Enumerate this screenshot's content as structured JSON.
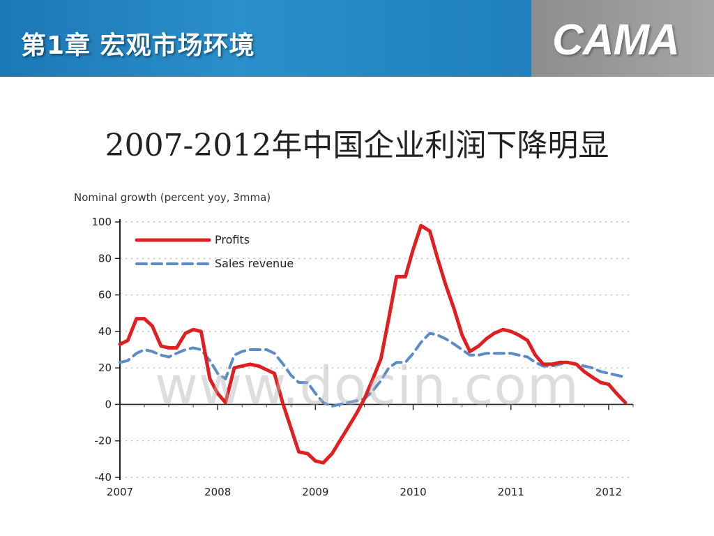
{
  "header": {
    "chapter_title": "第1章   宏观市场环境",
    "logo_text": "CAMA",
    "colors": {
      "band": "#1f7fbf",
      "logo_band": "#999999"
    }
  },
  "slide": {
    "title": "2007-2012年中国企业利润下降明显"
  },
  "watermark": "www.docin.com",
  "chart_data": {
    "type": "line",
    "title": "",
    "ylabel": "Nominal growth (percent yoy, 3mma)",
    "xlabel": "",
    "ylim": [
      -40,
      100
    ],
    "yticks": [
      100,
      80,
      60,
      40,
      20,
      0,
      -20,
      -40
    ],
    "xlim": [
      2007,
      2012.25
    ],
    "xtick_values": [
      2007,
      2008,
      2009,
      2010,
      2011,
      2012
    ],
    "xtick_labels": [
      "2007",
      "2008",
      "2009",
      "2010",
      "2011",
      "2012"
    ],
    "grid": true,
    "legend": "top-left",
    "series": [
      {
        "name": "Profits",
        "color": "#e02020",
        "style": "solid",
        "points": [
          [
            2007.0,
            33
          ],
          [
            2007.08,
            35
          ],
          [
            2007.17,
            47
          ],
          [
            2007.25,
            47
          ],
          [
            2007.33,
            43
          ],
          [
            2007.42,
            32
          ],
          [
            2007.5,
            31
          ],
          [
            2007.58,
            31
          ],
          [
            2007.67,
            39
          ],
          [
            2007.75,
            41
          ],
          [
            2007.83,
            40
          ],
          [
            2007.92,
            14
          ],
          [
            2008.0,
            6
          ],
          [
            2008.08,
            1
          ],
          [
            2008.17,
            20
          ],
          [
            2008.25,
            21
          ],
          [
            2008.33,
            22
          ],
          [
            2008.42,
            21
          ],
          [
            2008.5,
            19
          ],
          [
            2008.58,
            17
          ],
          [
            2008.67,
            0
          ],
          [
            2008.75,
            -13
          ],
          [
            2008.83,
            -26
          ],
          [
            2008.92,
            -27
          ],
          [
            2009.0,
            -31
          ],
          [
            2009.08,
            -32
          ],
          [
            2009.17,
            -27
          ],
          [
            2009.25,
            -20
          ],
          [
            2009.33,
            -13
          ],
          [
            2009.42,
            -5
          ],
          [
            2009.5,
            3
          ],
          [
            2009.58,
            13
          ],
          [
            2009.67,
            25
          ],
          [
            2009.75,
            47
          ],
          [
            2009.83,
            70
          ],
          [
            2009.92,
            70
          ],
          [
            2010.0,
            85
          ],
          [
            2010.08,
            98
          ],
          [
            2010.17,
            95
          ],
          [
            2010.25,
            80
          ],
          [
            2010.33,
            66
          ],
          [
            2010.42,
            52
          ],
          [
            2010.5,
            38
          ],
          [
            2010.58,
            29
          ],
          [
            2010.67,
            32
          ],
          [
            2010.75,
            36
          ],
          [
            2010.83,
            39
          ],
          [
            2010.92,
            41
          ],
          [
            2011.0,
            40
          ],
          [
            2011.08,
            38
          ],
          [
            2011.17,
            35
          ],
          [
            2011.25,
            27
          ],
          [
            2011.33,
            22
          ],
          [
            2011.42,
            22
          ],
          [
            2011.5,
            23
          ],
          [
            2011.58,
            23
          ],
          [
            2011.67,
            22
          ],
          [
            2011.75,
            18
          ],
          [
            2011.83,
            15
          ],
          [
            2011.92,
            12
          ],
          [
            2012.0,
            11
          ],
          [
            2012.08,
            6
          ],
          [
            2012.17,
            1
          ]
        ]
      },
      {
        "name": "Sales revenue",
        "color": "#5b8cc8",
        "style": "dashed",
        "points": [
          [
            2007.0,
            23
          ],
          [
            2007.08,
            24
          ],
          [
            2007.17,
            28
          ],
          [
            2007.25,
            30
          ],
          [
            2007.33,
            29
          ],
          [
            2007.42,
            27
          ],
          [
            2007.5,
            26
          ],
          [
            2007.58,
            28
          ],
          [
            2007.67,
            30
          ],
          [
            2007.75,
            31
          ],
          [
            2007.83,
            30
          ],
          [
            2007.92,
            24
          ],
          [
            2008.0,
            17
          ],
          [
            2008.08,
            14
          ],
          [
            2008.17,
            27
          ],
          [
            2008.25,
            29
          ],
          [
            2008.33,
            30
          ],
          [
            2008.42,
            30
          ],
          [
            2008.5,
            30
          ],
          [
            2008.58,
            28
          ],
          [
            2008.67,
            22
          ],
          [
            2008.75,
            16
          ],
          [
            2008.83,
            12
          ],
          [
            2008.92,
            12
          ],
          [
            2009.0,
            6
          ],
          [
            2009.08,
            1
          ],
          [
            2009.17,
            -1
          ],
          [
            2009.25,
            0
          ],
          [
            2009.33,
            1
          ],
          [
            2009.42,
            2
          ],
          [
            2009.5,
            3
          ],
          [
            2009.58,
            7
          ],
          [
            2009.67,
            13
          ],
          [
            2009.75,
            20
          ],
          [
            2009.83,
            23
          ],
          [
            2009.92,
            23
          ],
          [
            2010.0,
            28
          ],
          [
            2010.08,
            34
          ],
          [
            2010.17,
            39
          ],
          [
            2010.25,
            38
          ],
          [
            2010.33,
            36
          ],
          [
            2010.42,
            33
          ],
          [
            2010.5,
            30
          ],
          [
            2010.58,
            27
          ],
          [
            2010.67,
            27
          ],
          [
            2010.75,
            28
          ],
          [
            2010.83,
            28
          ],
          [
            2010.92,
            28
          ],
          [
            2011.0,
            28
          ],
          [
            2011.08,
            27
          ],
          [
            2011.17,
            26
          ],
          [
            2011.25,
            23
          ],
          [
            2011.33,
            21
          ],
          [
            2011.42,
            21
          ],
          [
            2011.5,
            22
          ],
          [
            2011.58,
            23
          ],
          [
            2011.67,
            22
          ],
          [
            2011.75,
            21
          ],
          [
            2011.83,
            20
          ],
          [
            2011.92,
            18
          ],
          [
            2012.0,
            17
          ],
          [
            2012.08,
            16
          ],
          [
            2012.17,
            15
          ]
        ]
      }
    ]
  }
}
